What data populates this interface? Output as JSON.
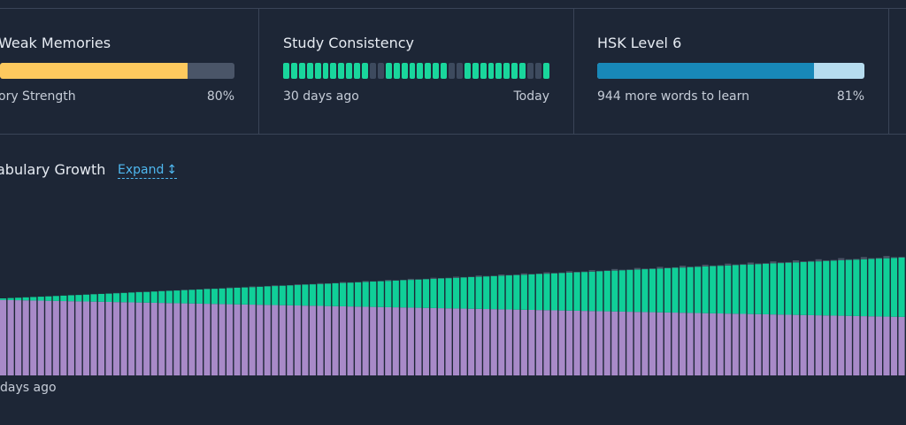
{
  "cards": [
    {
      "title": "Weak Memories",
      "foot_left": "ory Strength",
      "foot_right": "80%",
      "percent": 80,
      "fill_color": "#fdc95e",
      "track_color": "#4a5568"
    },
    {
      "title": "Study Consistency",
      "foot_left": "30 days ago",
      "foot_right": "Today",
      "days": [
        1,
        1,
        1,
        1,
        1,
        1,
        1,
        1,
        1,
        1,
        1,
        0,
        0,
        1,
        1,
        1,
        1,
        1,
        1,
        1,
        1,
        0,
        0,
        1,
        1,
        1,
        1,
        1,
        1,
        1,
        1,
        0,
        0,
        1
      ],
      "on_color": "#19d69c",
      "off_color": "#3d4a5e"
    },
    {
      "title": "HSK Level 6",
      "foot_left": "944 more words to learn",
      "foot_right": "81%",
      "percent": 81,
      "fill_color": "#1888b8",
      "track_color": "#b6dcef"
    }
  ],
  "vocab": {
    "title": "abulary Growth",
    "expand_label": "Expand",
    "expand_icon": "vertical-double-arrow-icon",
    "x_label_left": "days ago"
  },
  "chart_data": {
    "type": "bar",
    "stacked": true,
    "bar_count": 120,
    "series": [
      {
        "color": "#a88ac8",
        "values_start": 98,
        "values_end": 76
      },
      {
        "color": "#10cf98",
        "values_start": 2,
        "values_end": 77
      },
      {
        "color": "#4a5566",
        "values_start": 0,
        "values_end": 2
      }
    ],
    "y_max": 200
  }
}
